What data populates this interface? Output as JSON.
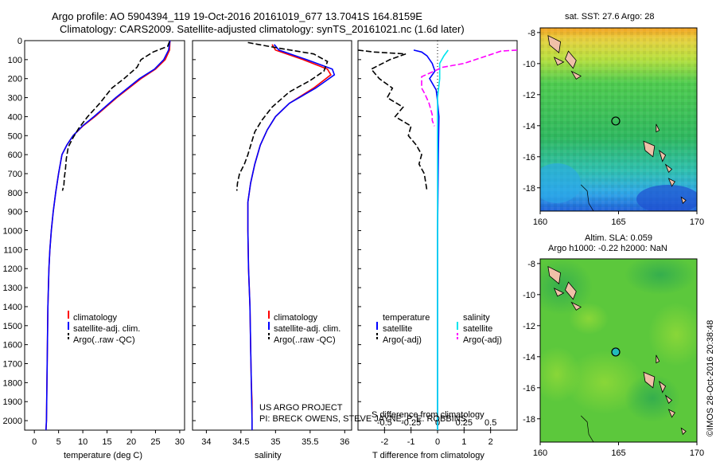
{
  "header": {
    "title_line1": "Argo profile: AO 5904394_119 19-Oct-2016 20161019_677 13.7041S 164.8159E",
    "title_line2": "Climatology: CARS2009. Satellite-adjusted climatology: synTS_20161021.nc (1.6d later)"
  },
  "credits": {
    "project": "US ARGO PROJECT",
    "pi": "PI: BRECK OWENS, STEVE JAYNE, P. E. ROBBINS",
    "stamp": "©IMOS 28-Oct-2016 20:38:48"
  },
  "colors": {
    "climatology": "#ff0000",
    "satellite": "#0000ff",
    "argo": "#000000",
    "sal_satellite": "#00e5ee",
    "sal_argo": "#ff00ff"
  },
  "chart_data": [
    {
      "id": "temperature",
      "type": "line",
      "xlabel": "temperature (deg C)",
      "ylabel": "",
      "xlim": [
        -2,
        31
      ],
      "ylim": [
        2050,
        0
      ],
      "xticks": [
        0,
        5,
        10,
        15,
        20,
        25,
        30
      ],
      "xtick_labels": [
        "0",
        "5",
        "10",
        "15",
        "20",
        "25",
        "30"
      ],
      "yticks": [
        0,
        100,
        200,
        300,
        400,
        500,
        600,
        700,
        800,
        900,
        1000,
        1100,
        1200,
        1300,
        1400,
        1500,
        1600,
        1700,
        1800,
        1900,
        2000
      ],
      "ytick_labels": [
        "0",
        "100",
        "200",
        "300",
        "400",
        "500",
        "600",
        "700",
        "800",
        "900",
        "1000",
        "1100",
        "1200",
        "1300",
        "1400",
        "1500",
        "1600",
        "1700",
        "1800",
        "1900",
        "2000"
      ],
      "legend": [
        "climatology",
        "satellite-adj. clim.",
        "Argo(..raw -QC)"
      ],
      "series": [
        {
          "name": "climatology",
          "color": "#ff0000",
          "dash": "",
          "x": [
            28.0,
            27.9,
            27.0,
            25.0,
            22.0,
            17.0,
            12.5,
            10.0,
            8.0,
            6.7,
            5.7,
            5.0,
            4.4,
            3.9,
            3.5,
            3.2,
            3.0,
            2.8,
            2.7,
            2.6,
            2.5,
            2.4
          ],
          "y": [
            0,
            50,
            100,
            150,
            200,
            300,
            400,
            450,
            500,
            550,
            600,
            700,
            800,
            900,
            1000,
            1100,
            1200,
            1400,
            1600,
            1800,
            2000,
            2050
          ]
        },
        {
          "name": "satellite-adj. clim.",
          "color": "#0000ff",
          "dash": "",
          "x": [
            28.0,
            27.7,
            26.7,
            24.8,
            21.7,
            16.8,
            12.3,
            9.9,
            8.0,
            6.7,
            5.7,
            5.0,
            4.4,
            3.9,
            3.5,
            3.2,
            3.0,
            2.8,
            2.7,
            2.6,
            2.5,
            2.4
          ],
          "y": [
            0,
            50,
            100,
            150,
            200,
            300,
            400,
            450,
            500,
            550,
            600,
            700,
            800,
            900,
            1000,
            1100,
            1200,
            1400,
            1600,
            1800,
            2000,
            2050
          ]
        },
        {
          "name": "Argo(..raw -QC)",
          "color": "#000000",
          "dash": "7,3",
          "x": [
            27.9,
            27.5,
            24.5,
            22.0,
            21.2,
            18.5,
            16.0,
            13.5,
            11.0,
            9.2,
            8.0,
            7.0,
            6.6,
            6.4,
            6.2,
            6.1,
            5.8
          ],
          "y": [
            5,
            30,
            60,
            100,
            140,
            200,
            250,
            330,
            400,
            460,
            510,
            560,
            620,
            680,
            720,
            760,
            790
          ]
        }
      ]
    },
    {
      "id": "salinity",
      "type": "line",
      "xlabel": "salinity",
      "ylabel": "",
      "xlim": [
        33.8,
        36.1
      ],
      "ylim": [
        2050,
        0
      ],
      "xticks": [
        34,
        34.5,
        35,
        35.5,
        36
      ],
      "xtick_labels": [
        "34",
        "34.5",
        "35",
        "35.5",
        "36"
      ],
      "legend": [
        "climatology",
        "satellite-adj. clim.",
        "Argo(..raw -QC)"
      ],
      "series": [
        {
          "name": "climatology",
          "color": "#ff0000",
          "dash": "",
          "x": [
            34.95,
            35.0,
            35.4,
            35.75,
            35.8,
            35.55,
            35.2,
            35.0,
            34.88,
            34.78,
            34.7,
            34.64,
            34.6,
            34.6,
            34.61,
            34.63,
            34.64,
            34.65,
            34.66,
            34.66,
            34.66
          ],
          "y": [
            20,
            50,
            100,
            150,
            180,
            250,
            330,
            400,
            470,
            550,
            650,
            750,
            850,
            1000,
            1200,
            1400,
            1600,
            1800,
            1900,
            2000,
            2050
          ]
        },
        {
          "name": "satellite-adj. clim.",
          "color": "#0000ff",
          "dash": "",
          "x": [
            34.98,
            35.05,
            35.45,
            35.82,
            35.85,
            35.58,
            35.2,
            35.0,
            34.88,
            34.78,
            34.7,
            34.64,
            34.6,
            34.6,
            34.61,
            34.63,
            34.64,
            34.65,
            34.66,
            34.66
          ],
          "y": [
            20,
            50,
            100,
            150,
            180,
            250,
            330,
            400,
            470,
            550,
            650,
            750,
            850,
            1000,
            1200,
            1400,
            1600,
            1800,
            2000,
            2050
          ]
        },
        {
          "name": "Argo(..raw -QC)",
          "color": "#000000",
          "dash": "7,3",
          "x": [
            34.6,
            34.75,
            35.05,
            35.55,
            35.75,
            35.7,
            35.5,
            35.2,
            34.95,
            34.8,
            34.7,
            34.65,
            34.6,
            34.55,
            34.48,
            34.45,
            34.44
          ],
          "y": [
            10,
            20,
            40,
            70,
            110,
            160,
            210,
            270,
            350,
            420,
            480,
            540,
            600,
            650,
            700,
            750,
            790
          ]
        }
      ]
    },
    {
      "id": "difference",
      "type": "line",
      "xlabel": "T difference from climatology",
      "ylabel": "",
      "xlim": [
        -3,
        3
      ],
      "ylim": [
        2050,
        0
      ],
      "xticks": [
        -2,
        -1,
        0,
        1,
        2
      ],
      "xtick_labels": [
        "-2",
        "-1",
        "0",
        "1",
        "2"
      ],
      "x2label": "S difference from climatology",
      "x2lim": [
        -0.75,
        0.75
      ],
      "x2ticks": [
        -0.5,
        -0.25,
        0,
        0.25,
        0.5
      ],
      "x2tick_labels": [
        "-0.5",
        "-0.25",
        "0",
        "0.25",
        "0.5"
      ],
      "legend_heads": [
        "temperature",
        "salinity"
      ],
      "legend_temperature": [
        "satellite",
        "Argo(-adj)"
      ],
      "legend_salinity": [
        "satellite",
        "Argo(-adj)"
      ],
      "series": [
        {
          "name": "temperature satellite",
          "color": "#0000ff",
          "dash": "",
          "axis": "T",
          "x": [
            -0.9,
            -0.6,
            -0.4,
            -0.2,
            -0.1,
            -0.3,
            -0.05,
            0.0,
            0.05,
            0.03,
            0.0,
            0.0,
            0.0
          ],
          "y": [
            50,
            60,
            80,
            120,
            160,
            200,
            260,
            320,
            400,
            600,
            1000,
            1500,
            2050
          ]
        },
        {
          "name": "temperature Argo(-adj)",
          "color": "#000000",
          "dash": "7,3",
          "axis": "T",
          "x": [
            -3.0,
            -2.4,
            -1.2,
            -1.8,
            -2.5,
            -2.2,
            -1.7,
            -1.9,
            -1.3,
            -1.6,
            -1.0,
            -1.1,
            -0.8,
            -0.6,
            -0.7,
            -0.5,
            -0.4
          ],
          "y": [
            50,
            60,
            70,
            100,
            150,
            200,
            250,
            300,
            350,
            400,
            450,
            500,
            550,
            600,
            650,
            700,
            790
          ]
        },
        {
          "name": "salinity satellite",
          "color": "#00e5ee",
          "dash": "",
          "axis": "S",
          "x": [
            0.1,
            0.06,
            0.02,
            0.02,
            0.0,
            0.0,
            0.0,
            0.0
          ],
          "y": [
            50,
            80,
            120,
            200,
            300,
            500,
            1000,
            2050
          ]
        },
        {
          "name": "salinity Argo(-adj)",
          "color": "#ff00ff",
          "dash": "7,3",
          "axis": "S",
          "x": [
            0.75,
            0.6,
            0.25,
            0.05,
            -0.15,
            -0.15,
            -0.12,
            -0.08,
            -0.05,
            -0.05,
            -0.03
          ],
          "y": [
            50,
            55,
            120,
            140,
            190,
            250,
            280,
            330,
            390,
            420,
            450
          ]
        }
      ]
    },
    {
      "id": "sst-map",
      "type": "heatmap",
      "title": "sat. SST: 27.6 Argo: 28",
      "xlim": [
        160,
        170
      ],
      "ylim": [
        -19.5,
        -7.7
      ],
      "xticks": [
        160,
        165,
        170
      ],
      "xtick_labels": [
        "160",
        "165",
        "170"
      ],
      "yticks": [
        -8,
        -10,
        -12,
        -14,
        -16,
        -18
      ],
      "ytick_labels": [
        "-8",
        "-10",
        "-12",
        "-14",
        "-16",
        "-18"
      ],
      "argo_position": [
        164.82,
        -13.7
      ],
      "marker_fill": "none"
    },
    {
      "id": "sla-map",
      "type": "heatmap",
      "title": "Altim. SLA: 0.059",
      "subtitle": "Argo h1000: -0.22 h2000: NaN",
      "xlim": [
        160,
        170
      ],
      "ylim": [
        -19.5,
        -7.7
      ],
      "xticks": [
        160,
        165,
        170
      ],
      "xtick_labels": [
        "160",
        "165",
        "170"
      ],
      "yticks": [
        -8,
        -10,
        -12,
        -14,
        -16,
        -18
      ],
      "ytick_labels": [
        "-8",
        "-10",
        "-12",
        "-14",
        "-16",
        "-18"
      ],
      "argo_position": [
        164.82,
        -13.7
      ],
      "marker_fill": "#22bbbb"
    }
  ]
}
